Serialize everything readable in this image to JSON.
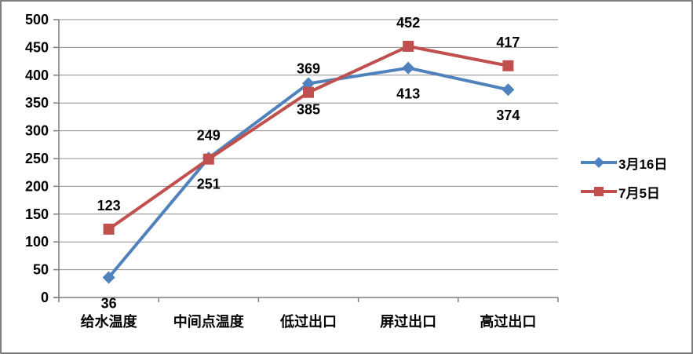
{
  "chart_data": {
    "type": "line",
    "title": "",
    "xlabel": "",
    "ylabel": "",
    "categories": [
      "给水温度",
      "中间点温度",
      "低过出口",
      "屏过出口",
      "高过出口"
    ],
    "series": [
      {
        "name": "3月16日",
        "color": "#4F81BD",
        "marker": "diamond",
        "values": [
          36,
          251,
          385,
          413,
          374
        ],
        "label_position": "below"
      },
      {
        "name": "7月5日",
        "color": "#C0504D",
        "marker": "square",
        "values": [
          123,
          249,
          369,
          452,
          417
        ],
        "label_position": "above"
      }
    ],
    "ylim": [
      0,
      500
    ],
    "yticks": [
      0,
      50,
      100,
      150,
      200,
      250,
      300,
      350,
      400,
      450,
      500
    ],
    "grid": true,
    "legend_position": "right"
  },
  "colors": {
    "grid": "#8c8c8c",
    "axis": "#7f7f7f",
    "text": "#000000",
    "border": "#7f7f7f",
    "background": "#ffffff",
    "series_blue": "#4F81BD",
    "series_red": "#C0504D"
  }
}
